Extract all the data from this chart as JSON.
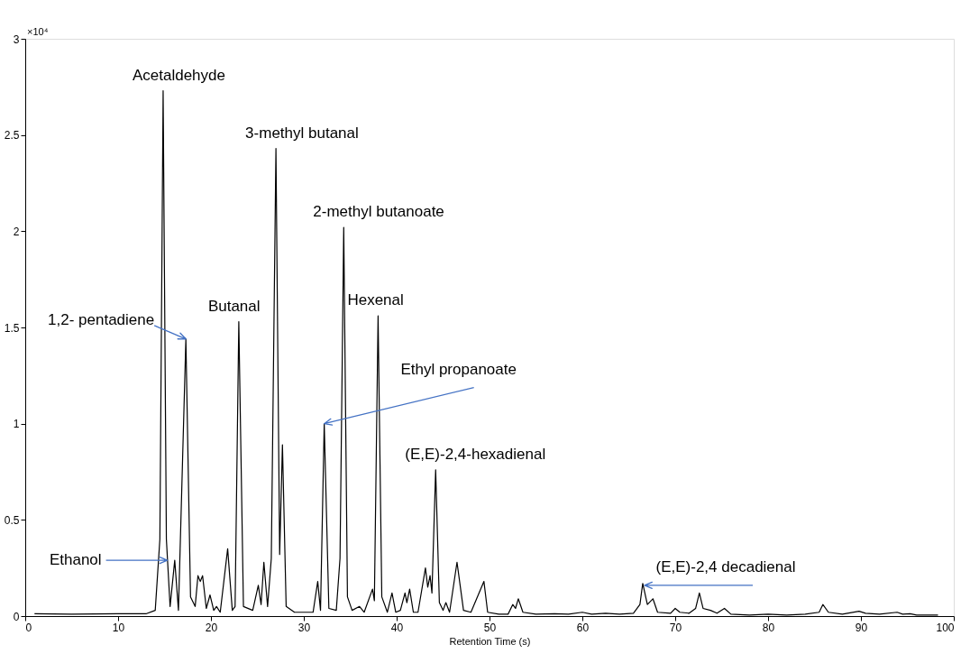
{
  "chart_data": {
    "type": "line",
    "xlabel": "Retention Time (s)",
    "xlim": [
      0,
      100
    ],
    "xticks": [
      0,
      10,
      20,
      30,
      40,
      50,
      60,
      70,
      80,
      90,
      100
    ],
    "ylim": [
      0,
      3
    ],
    "yticks": [
      0,
      0.5,
      1,
      1.5,
      2,
      2.5,
      3
    ],
    "grid": false,
    "x": [
      1,
      5,
      10,
      13,
      14,
      14.5,
      14.85,
      15.2,
      15.6,
      16.1,
      16.5,
      17.3,
      17.8,
      18.3,
      18.6,
      18.85,
      19.1,
      19.5,
      19.9,
      20.3,
      20.6,
      21.0,
      21.8,
      22.3,
      22.6,
      23.0,
      23.5,
      24.5,
      25.1,
      25.4,
      25.7,
      26.1,
      26.5,
      27.0,
      27.4,
      27.7,
      28.1,
      29,
      30,
      31,
      31.5,
      31.8,
      32.2,
      32.7,
      33.5,
      33.9,
      34.3,
      34.7,
      35.2,
      36.0,
      36.5,
      37.4,
      37.6,
      38.0,
      38.4,
      39.0,
      39.5,
      39.9,
      40.4,
      40.9,
      41.1,
      41.4,
      41.8,
      42.3,
      43.1,
      43.35,
      43.6,
      43.8,
      44.2,
      44.6,
      45.0,
      45.3,
      45.7,
      46.5,
      47.2,
      48,
      49.4,
      49.8,
      51,
      52.0,
      52.5,
      52.8,
      53.1,
      53.6,
      55,
      57,
      58.5,
      60,
      61,
      62.5,
      64,
      65.5,
      66.2,
      66.5,
      67.0,
      67.6,
      68.1,
      69.5,
      70.0,
      70.5,
      71.5,
      72.2,
      72.6,
      73.0,
      73.8,
      74.5,
      75.3,
      76,
      78,
      80,
      82,
      84,
      85.5,
      85.9,
      86.5,
      88,
      89.8,
      90.5,
      92,
      93.9,
      94.5,
      95.3,
      96,
      98.3
    ],
    "series": [
      {
        "color": "#000000",
        "values": [
          0.012,
          0.01,
          0.012,
          0.012,
          0.03,
          0.4,
          2.73,
          0.4,
          0.05,
          0.29,
          0.03,
          1.44,
          0.1,
          0.05,
          0.21,
          0.18,
          0.21,
          0.04,
          0.11,
          0.03,
          0.05,
          0.02,
          0.35,
          0.03,
          0.05,
          1.53,
          0.05,
          0.03,
          0.16,
          0.06,
          0.28,
          0.05,
          0.3,
          2.43,
          0.32,
          0.89,
          0.05,
          0.02,
          0.02,
          0.02,
          0.18,
          0.03,
          1.0,
          0.04,
          0.03,
          0.3,
          2.02,
          0.1,
          0.03,
          0.05,
          0.02,
          0.14,
          0.08,
          1.56,
          0.1,
          0.02,
          0.12,
          0.02,
          0.03,
          0.12,
          0.07,
          0.14,
          0.02,
          0.02,
          0.25,
          0.15,
          0.21,
          0.12,
          0.76,
          0.07,
          0.03,
          0.07,
          0.02,
          0.28,
          0.03,
          0.02,
          0.18,
          0.02,
          0.01,
          0.01,
          0.06,
          0.04,
          0.09,
          0.02,
          0.01,
          0.012,
          0.01,
          0.02,
          0.01,
          0.015,
          0.01,
          0.015,
          0.06,
          0.17,
          0.06,
          0.09,
          0.02,
          0.015,
          0.04,
          0.02,
          0.015,
          0.04,
          0.12,
          0.04,
          0.03,
          0.015,
          0.04,
          0.01,
          0.005,
          0.01,
          0.005,
          0.01,
          0.02,
          0.06,
          0.02,
          0.01,
          0.025,
          0.015,
          0.01,
          0.02,
          0.01,
          0.012,
          0.005,
          0.005
        ]
      }
    ],
    "annotations": [
      "×10⁴",
      {
        "text": "Acetaldehyde",
        "x": 14.85,
        "y": 2.73
      },
      {
        "text": "Ethanol",
        "x": 15.3,
        "y": 0.29
      },
      {
        "text": "1,2- pentadiene",
        "x": 17.3,
        "y": 1.44
      },
      {
        "text": "Butanal",
        "x": 23.0,
        "y": 1.53
      },
      {
        "text": "3-methyl butanal",
        "x": 27.0,
        "y": 2.43
      },
      {
        "text": "Ethyl propanoate",
        "x": 32.2,
        "y": 1.0
      },
      {
        "text": "2-methyl butanoate",
        "x": 34.3,
        "y": 2.02
      },
      {
        "text": "Hexenal",
        "x": 38.0,
        "y": 1.56
      },
      {
        "text": "(E,E)-2,4-hexadienal",
        "x": 44.2,
        "y": 0.76
      },
      {
        "text": "(E,E)-2,4 decadienal",
        "x": 66.7,
        "y": 0.16
      }
    ]
  }
}
